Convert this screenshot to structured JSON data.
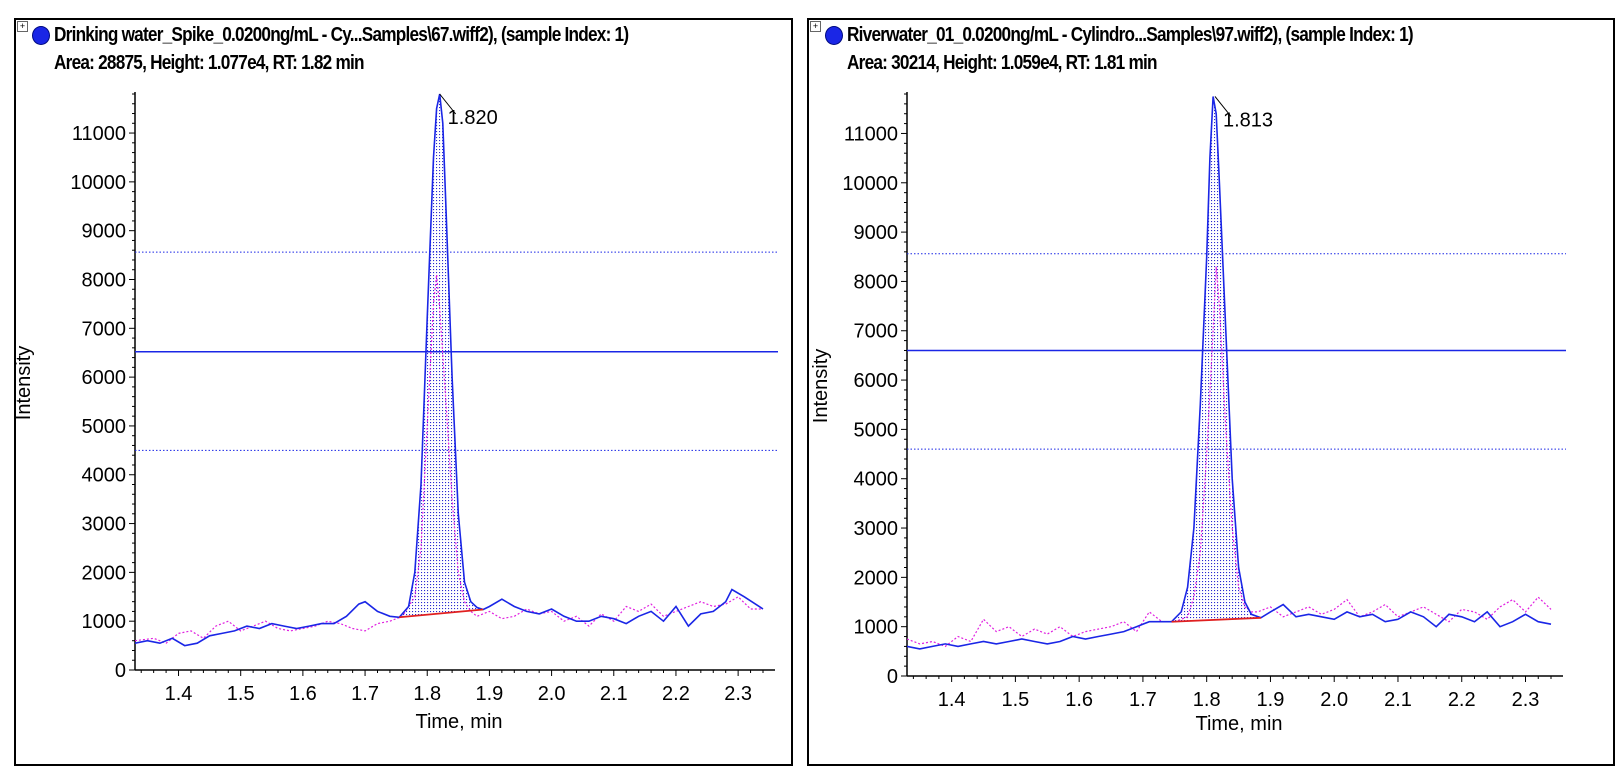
{
  "panels": [
    {
      "title_line1": "Drinking water_Spike_0.0200ng/mL - Cy...Samples\\67.wiff2), (sample Index: 1)",
      "title_line2": "Area: 28875, Height: 1.077e4, RT: 1.82 min",
      "expand_glyph": "+",
      "peak_label": "1.820"
    },
    {
      "title_line1": "Riverwater_01_0.0200ng/mL - Cylindro...Samples\\97.wiff2), (sample Index: 1)",
      "title_line2": "Area: 30214, Height: 1.059e4, RT: 1.81 min",
      "expand_glyph": "+",
      "peak_label": "1.813"
    }
  ],
  "colors": {
    "main_trace": "#1a26e6",
    "secondary_trace": "#e020e0",
    "baseline": "#e02020",
    "fill_dots": "#2a2ad0",
    "ion_ratio_lines": "#1a26e6",
    "frame": "#000000"
  },
  "chart_data": [
    {
      "type": "line",
      "xlabel": "Time, min",
      "ylabel": "Intensity",
      "xlim": [
        1.33,
        2.34
      ],
      "ylim": [
        0,
        11800
      ],
      "x_ticks": [
        1.4,
        1.5,
        1.6,
        1.7,
        1.8,
        1.9,
        2.0,
        2.1,
        2.2,
        2.3
      ],
      "x_tick_labels": [
        "1.4",
        "1.5",
        "1.6",
        "1.7",
        "1.8",
        "1.9",
        "2.0",
        "2.1",
        "2.2",
        "2.3"
      ],
      "y_ticks": [
        0,
        1000,
        2000,
        3000,
        4000,
        5000,
        6000,
        7000,
        8000,
        9000,
        10000,
        11000
      ],
      "y_tick_labels": [
        "0",
        "1000",
        "2000",
        "3000",
        "4000",
        "5000",
        "6000",
        "7000",
        "8000",
        "9000",
        "10000",
        "11000"
      ],
      "peak": {
        "rt": 1.82,
        "apex": 11800,
        "start": 1.755,
        "end": 1.89,
        "baseline_start": 1080,
        "baseline_end": 1240
      },
      "series": [
        {
          "role": "quantifier",
          "x": [
            1.33,
            1.35,
            1.37,
            1.39,
            1.41,
            1.43,
            1.45,
            1.47,
            1.49,
            1.51,
            1.53,
            1.55,
            1.57,
            1.59,
            1.61,
            1.63,
            1.65,
            1.67,
            1.69,
            1.7,
            1.72,
            1.74,
            1.755,
            1.77,
            1.78,
            1.79,
            1.8,
            1.81,
            1.815,
            1.82,
            1.825,
            1.83,
            1.84,
            1.85,
            1.86,
            1.87,
            1.88,
            1.89,
            1.9,
            1.92,
            1.94,
            1.96,
            1.98,
            2.0,
            2.02,
            2.04,
            2.06,
            2.08,
            2.1,
            2.12,
            2.14,
            2.16,
            2.18,
            2.2,
            2.22,
            2.24,
            2.26,
            2.28,
            2.29,
            2.31,
            2.34
          ],
          "y": [
            550,
            600,
            550,
            650,
            500,
            550,
            700,
            750,
            800,
            900,
            850,
            950,
            900,
            850,
            900,
            950,
            950,
            1100,
            1350,
            1400,
            1200,
            1100,
            1080,
            1300,
            2000,
            3800,
            7200,
            10500,
            11500,
            11800,
            11200,
            9500,
            6000,
            3200,
            1800,
            1400,
            1280,
            1240,
            1300,
            1450,
            1300,
            1200,
            1150,
            1250,
            1100,
            1000,
            1000,
            1100,
            1050,
            950,
            1100,
            1200,
            1000,
            1300,
            900,
            1150,
            1200,
            1400,
            1650,
            1500,
            1250
          ]
        },
        {
          "role": "qualifier",
          "x": [
            1.33,
            1.36,
            1.38,
            1.4,
            1.42,
            1.44,
            1.46,
            1.48,
            1.5,
            1.52,
            1.54,
            1.56,
            1.58,
            1.6,
            1.62,
            1.64,
            1.66,
            1.68,
            1.7,
            1.72,
            1.74,
            1.76,
            1.78,
            1.79,
            1.8,
            1.81,
            1.815,
            1.82,
            1.83,
            1.84,
            1.85,
            1.86,
            1.87,
            1.88,
            1.9,
            1.92,
            1.94,
            1.96,
            1.98,
            2.0,
            2.02,
            2.04,
            2.06,
            2.08,
            2.1,
            2.12,
            2.14,
            2.16,
            2.18,
            2.2,
            2.22,
            2.24,
            2.26,
            2.28,
            2.3,
            2.32,
            2.34
          ],
          "y": [
            600,
            650,
            550,
            750,
            800,
            650,
            900,
            1000,
            800,
            900,
            1000,
            850,
            800,
            850,
            900,
            1000,
            950,
            850,
            800,
            950,
            1000,
            1100,
            1500,
            2500,
            5000,
            7500,
            8100,
            7400,
            5500,
            3500,
            2000,
            1400,
            1200,
            1100,
            1200,
            1050,
            1100,
            1250,
            1150,
            1200,
            1000,
            1100,
            900,
            1150,
            1000,
            1300,
            1200,
            1350,
            1100,
            1200,
            1300,
            1400,
            1300,
            1350,
            1500,
            1250,
            1250
          ]
        }
      ],
      "horizontal_lines": [
        {
          "y": 6520,
          "style": "solid"
        },
        {
          "y": 8560,
          "style": "dotted"
        },
        {
          "y": 4500,
          "style": "dotted"
        }
      ]
    },
    {
      "type": "line",
      "xlabel": "Time, min",
      "ylabel": "Intensity",
      "xlim": [
        1.33,
        2.34
      ],
      "ylim": [
        0,
        11800
      ],
      "x_ticks": [
        1.4,
        1.5,
        1.6,
        1.7,
        1.8,
        1.9,
        2.0,
        2.1,
        2.2,
        2.3
      ],
      "x_tick_labels": [
        "1.4",
        "1.5",
        "1.6",
        "1.7",
        "1.8",
        "1.9",
        "2.0",
        "2.1",
        "2.2",
        "2.3"
      ],
      "y_ticks": [
        0,
        1000,
        2000,
        3000,
        4000,
        5000,
        6000,
        7000,
        8000,
        9000,
        10000,
        11000
      ],
      "y_tick_labels": [
        "0",
        "1000",
        "2000",
        "3000",
        "4000",
        "5000",
        "6000",
        "7000",
        "8000",
        "9000",
        "10000",
        "11000"
      ],
      "peak": {
        "rt": 1.813,
        "apex": 11750,
        "start": 1.745,
        "end": 1.885,
        "baseline_start": 1100,
        "baseline_end": 1180
      },
      "series": [
        {
          "role": "quantifier",
          "x": [
            1.33,
            1.35,
            1.37,
            1.39,
            1.41,
            1.43,
            1.45,
            1.47,
            1.49,
            1.51,
            1.53,
            1.55,
            1.57,
            1.59,
            1.61,
            1.63,
            1.65,
            1.67,
            1.69,
            1.71,
            1.73,
            1.745,
            1.76,
            1.77,
            1.78,
            1.79,
            1.8,
            1.805,
            1.81,
            1.815,
            1.82,
            1.83,
            1.84,
            1.85,
            1.86,
            1.87,
            1.885,
            1.9,
            1.92,
            1.94,
            1.96,
            1.98,
            2.0,
            2.02,
            2.04,
            2.06,
            2.08,
            2.1,
            2.12,
            2.14,
            2.16,
            2.18,
            2.2,
            2.22,
            2.24,
            2.26,
            2.28,
            2.3,
            2.32,
            2.34
          ],
          "y": [
            600,
            550,
            600,
            650,
            600,
            650,
            700,
            650,
            700,
            750,
            700,
            650,
            700,
            800,
            750,
            800,
            850,
            900,
            1000,
            1100,
            1100,
            1100,
            1300,
            1800,
            3000,
            5500,
            8500,
            10500,
            11750,
            11400,
            10000,
            7000,
            4000,
            2200,
            1500,
            1250,
            1180,
            1300,
            1450,
            1200,
            1250,
            1200,
            1150,
            1300,
            1200,
            1250,
            1100,
            1150,
            1300,
            1200,
            1000,
            1250,
            1200,
            1100,
            1300,
            1000,
            1100,
            1250,
            1100,
            1050
          ]
        },
        {
          "role": "qualifier",
          "x": [
            1.33,
            1.35,
            1.37,
            1.39,
            1.41,
            1.43,
            1.45,
            1.47,
            1.49,
            1.51,
            1.53,
            1.55,
            1.57,
            1.59,
            1.61,
            1.63,
            1.65,
            1.67,
            1.69,
            1.71,
            1.73,
            1.75,
            1.77,
            1.78,
            1.79,
            1.8,
            1.81,
            1.815,
            1.82,
            1.83,
            1.84,
            1.85,
            1.86,
            1.87,
            1.88,
            1.9,
            1.92,
            1.94,
            1.96,
            1.98,
            2.0,
            2.02,
            2.04,
            2.06,
            2.08,
            2.1,
            2.12,
            2.14,
            2.16,
            2.18,
            2.2,
            2.22,
            2.24,
            2.26,
            2.28,
            2.3,
            2.32,
            2.34
          ],
          "y": [
            750,
            650,
            700,
            600,
            800,
            700,
            1150,
            900,
            1000,
            800,
            950,
            850,
            1000,
            800,
            900,
            950,
            1000,
            1100,
            900,
            1300,
            1100,
            1100,
            1200,
            1600,
            2500,
            4500,
            7000,
            8300,
            7500,
            5000,
            3000,
            1800,
            1400,
            1300,
            1300,
            1400,
            1200,
            1300,
            1400,
            1250,
            1350,
            1550,
            1200,
            1300,
            1450,
            1200,
            1300,
            1400,
            1250,
            1100,
            1350,
            1300,
            1150,
            1400,
            1550,
            1300,
            1600,
            1350
          ]
        }
      ],
      "horizontal_lines": [
        {
          "y": 6600,
          "style": "solid"
        },
        {
          "y": 8560,
          "style": "dotted"
        },
        {
          "y": 4600,
          "style": "dotted"
        }
      ]
    }
  ]
}
